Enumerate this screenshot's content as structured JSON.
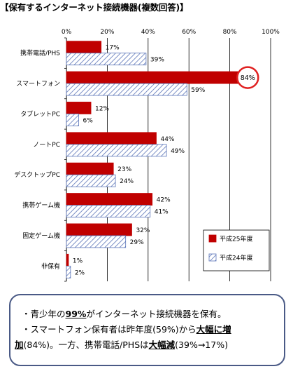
{
  "title": "【保有するインターネット接続機器(複数回答)】",
  "chart_data": {
    "type": "bar",
    "orientation": "horizontal",
    "categories": [
      "携帯電話/PHS",
      "スマートフォン",
      "タブレットPC",
      "ノートPC",
      "デスクトップPC",
      "携帯ゲーム機",
      "固定ゲーム機",
      "非保有"
    ],
    "series": [
      {
        "name": "平成25年度",
        "values": [
          17,
          84,
          12,
          44,
          23,
          42,
          32,
          1
        ],
        "labels": [
          "17%",
          "84%",
          "12%",
          "44%",
          "23%",
          "42%",
          "32%",
          "1%"
        ],
        "color": "#c00000",
        "pattern": "solid"
      },
      {
        "name": "平成24年度",
        "values": [
          39,
          59,
          6,
          49,
          24,
          41,
          29,
          2
        ],
        "labels": [
          "39%",
          "59%",
          "6%",
          "49%",
          "24%",
          "41%",
          "29%",
          "2%"
        ],
        "color": "#5a74b8",
        "pattern": "diagonal-hatch"
      }
    ],
    "xlim": [
      0,
      100
    ],
    "ticks": [
      0,
      20,
      40,
      60,
      80,
      100
    ],
    "tick_labels": [
      "0%",
      "20%",
      "40%",
      "60%",
      "80%",
      "100%"
    ],
    "grid": true,
    "legend": "bottom-right",
    "highlight": "スマートフォン 84%"
  },
  "summary": {
    "line1": [
      "・青少年の",
      "99%",
      "がインターネット接続機器を保有。"
    ],
    "line2": [
      "・スマートフォン保有者は昨年度(59%)から",
      "大幅に増"
    ],
    "line3": [
      "加",
      "(84%)。一方、携帯電話/PHSは",
      "大幅減",
      "(39%→17%)"
    ]
  }
}
